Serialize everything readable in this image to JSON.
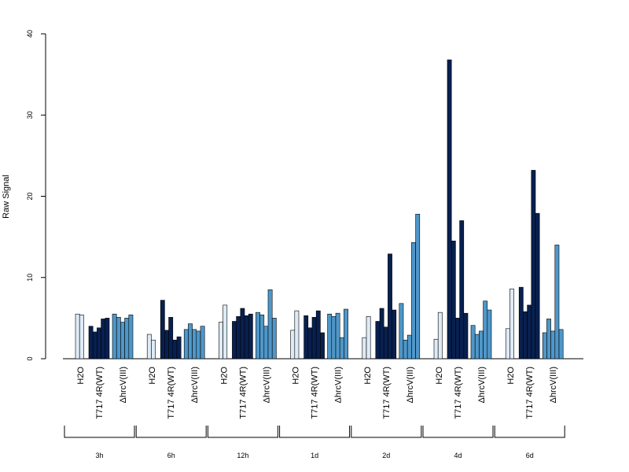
{
  "chart_data": {
    "type": "bar",
    "ylabel": "Raw Signal",
    "ylim": [
      0,
      40
    ],
    "yticks": [
      "0",
      "10",
      "20",
      "30",
      "40"
    ],
    "conditions": [
      {
        "key": "h2o",
        "label": "H2O",
        "color": "#deebf7"
      },
      {
        "key": "wt",
        "label": "T717 4R(WT)",
        "color": "#08204f"
      },
      {
        "key": "hrcv",
        "label": "ΔhrcV(III)",
        "color": "#4f97c9"
      }
    ],
    "timepoints": [
      "3h",
      "6h",
      "12h",
      "1d",
      "2d",
      "4d",
      "6d"
    ],
    "groups": [
      {
        "time": "3h",
        "h2o": [
          5.5,
          5.4
        ],
        "wt": [
          4.0,
          3.3,
          3.8,
          4.9,
          5.0
        ],
        "hrcv": [
          5.5,
          5.1,
          4.5,
          5.0,
          5.4
        ]
      },
      {
        "time": "6h",
        "h2o": [
          3.0,
          2.3
        ],
        "wt": [
          7.2,
          3.5,
          5.1,
          2.3,
          2.7
        ],
        "hrcv": [
          3.6,
          4.3,
          3.6,
          3.4,
          4.0
        ]
      },
      {
        "time": "12h",
        "h2o": [
          4.5,
          6.6
        ],
        "wt": [
          4.6,
          5.2,
          6.2,
          5.3,
          5.5
        ],
        "hrcv": [
          5.7,
          5.4,
          4.0,
          8.5,
          5.0
        ]
      },
      {
        "time": "1d",
        "h2o": [
          3.5,
          5.9
        ],
        "wt": [
          5.3,
          3.8,
          5.1,
          5.9,
          3.2
        ],
        "hrcv": [
          5.5,
          5.2,
          5.6,
          2.6,
          6.1
        ]
      },
      {
        "time": "2d",
        "h2o": [
          2.6,
          5.2
        ],
        "wt": [
          4.6,
          6.2,
          3.9,
          12.9,
          6.0
        ],
        "hrcv": [
          6.8,
          2.3,
          2.9,
          14.3,
          17.8
        ]
      },
      {
        "time": "4d",
        "h2o": [
          2.4,
          5.7
        ],
        "wt": [
          36.8,
          14.5,
          5.0,
          17.0,
          5.6
        ],
        "hrcv": [
          4.1,
          3.0,
          3.4,
          7.1,
          6.0
        ]
      },
      {
        "time": "6d",
        "h2o": [
          3.7,
          8.6
        ],
        "wt": [
          8.8,
          5.8,
          6.6,
          23.2,
          17.9
        ],
        "hrcv": [
          3.2,
          4.9,
          3.4,
          14.0,
          3.6
        ]
      }
    ]
  }
}
